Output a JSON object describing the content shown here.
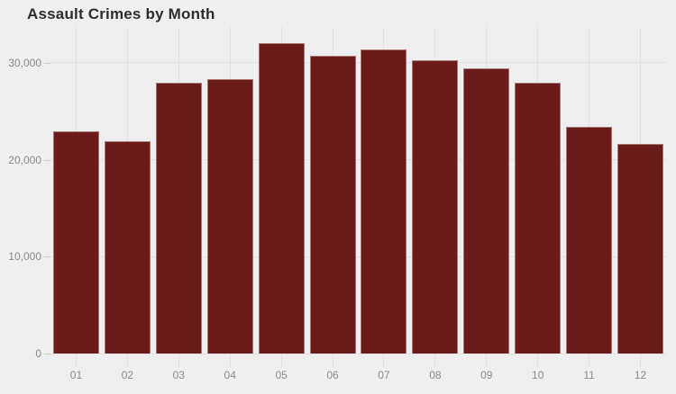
{
  "title": "Assault Crimes by Month",
  "chart_data": {
    "type": "bar",
    "title": "Assault Crimes by Month",
    "categories": [
      "01",
      "02",
      "03",
      "04",
      "05",
      "06",
      "07",
      "08",
      "09",
      "10",
      "11",
      "12"
    ],
    "values": [
      22900,
      21900,
      27900,
      28300,
      32000,
      30750,
      31350,
      30300,
      29450,
      27950,
      23350,
      21600
    ],
    "xlabel": "",
    "ylabel": "",
    "ylim": [
      0,
      33700
    ],
    "yticks": [
      0,
      10000,
      20000,
      30000
    ],
    "ytick_labels": [
      "0",
      "10,000",
      "20,000",
      "30,000"
    ],
    "grid": "both",
    "legend": "none",
    "bar_color": "#6B1B1A",
    "bar_border_color": "rgba(255,255,255,0.4)",
    "background_color": "#EFEFEF",
    "gridline_color": "#E1E1E1",
    "axis_label_color": "#8A8A8A",
    "title_color": "#2D2D2D"
  }
}
